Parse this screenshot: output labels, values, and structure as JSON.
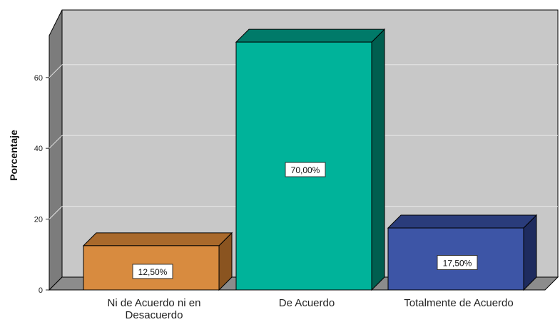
{
  "chart_data": {
    "type": "bar",
    "title": "",
    "xlabel": "",
    "ylabel": "Porcentaje",
    "ylim": [
      0,
      74
    ],
    "yticks": [
      0,
      20,
      40,
      60
    ],
    "grid": true,
    "categories": [
      [
        "Ni de Acuerdo ni en",
        "Desacuerdo"
      ],
      [
        "De Acuerdo"
      ],
      [
        "Totalmente de Acuerdo"
      ]
    ],
    "values": [
      12.5,
      70.0,
      17.5
    ],
    "data_labels": [
      "12,50%",
      "70,00%",
      "17,50%"
    ],
    "colors": [
      {
        "front": "#D88B3F",
        "side": "#8A5420",
        "top": "#A9692B"
      },
      {
        "front": "#00B39A",
        "side": "#005E4F",
        "top": "#007A69"
      },
      {
        "front": "#3D55A6",
        "side": "#1E2B5E",
        "top": "#2A3C7B"
      }
    ],
    "background": {
      "wall": "#C8C8C8",
      "floor": "#8C8C8C",
      "side_wall": "#7C7C7C",
      "grid": "#E6E6E6"
    }
  }
}
